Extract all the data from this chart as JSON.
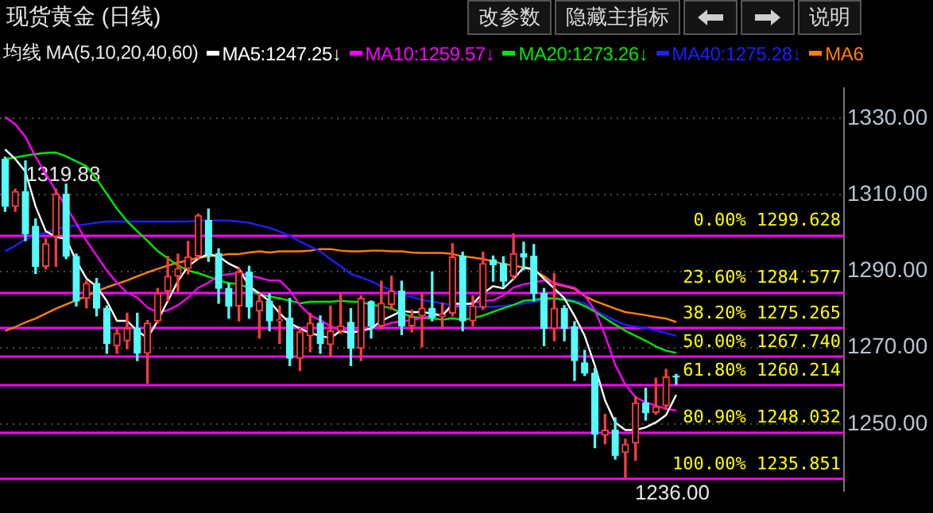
{
  "chart_data": {
    "type": "candlestick",
    "title": "现货黄金 (日线)",
    "legend_title": "均线 MA(5,10,20,40,60)",
    "legend": "top",
    "grid": "y",
    "marker": "none",
    "line_style": "solid",
    "tick_labels": "y",
    "categories": [
      null,
      null,
      null,
      null,
      null,
      null,
      null,
      null,
      null,
      null,
      null,
      null,
      null,
      null,
      null,
      null,
      null,
      null,
      null,
      null,
      null,
      null,
      null,
      null,
      null,
      null,
      null,
      null,
      null,
      null,
      null,
      null,
      null,
      null,
      null,
      null,
      null,
      null,
      null,
      null,
      null,
      null,
      null,
      null,
      null,
      null,
      null,
      null,
      null,
      null,
      null,
      null,
      null,
      null,
      null,
      null,
      null,
      null,
      null,
      null,
      null,
      null,
      null,
      null,
      null,
      null,
      null
    ],
    "ohlc": [
      [
        1319.3,
        1319.88,
        1305.7,
        1307.0
      ],
      [
        1307.0,
        1311.5,
        1305.7,
        1310.9
      ],
      [
        1310.9,
        1318.9,
        1298.0,
        1299.8
      ],
      [
        1301.8,
        1303.7,
        1289.4,
        1291.3
      ],
      [
        1291.3,
        1298.5,
        1290.6,
        1297.2
      ],
      [
        1299.1,
        1311.5,
        1291.3,
        1310.2
      ],
      [
        1310.2,
        1312.8,
        1293.3,
        1293.9
      ],
      [
        1293.9,
        1294.5,
        1280.9,
        1282.2
      ],
      [
        1282.9,
        1287.5,
        1280.4,
        1286.8
      ],
      [
        1286.8,
        1288.1,
        1278.3,
        1280.3
      ],
      [
        1280.3,
        1280.9,
        1268.5,
        1271.1
      ],
      [
        1270.5,
        1275.0,
        1268.5,
        1273.7
      ],
      [
        1271.8,
        1279.0,
        1269.7,
        1275.0
      ],
      [
        1275.0,
        1279.0,
        1266.6,
        1268.5
      ],
      [
        1268.5,
        1277.1,
        1260.7,
        1276.4
      ],
      [
        1277.0,
        1285.5,
        1276.4,
        1284.2
      ],
      [
        1284.8,
        1293.9,
        1282.2,
        1288.7
      ],
      [
        1288.7,
        1294.5,
        1284.8,
        1290.7
      ],
      [
        1290.7,
        1297.8,
        1289.3,
        1293.7
      ],
      [
        1294.0,
        1305.0,
        1293.3,
        1304.6
      ],
      [
        1303.3,
        1306.3,
        1292.6,
        1294.6
      ],
      [
        1294.6,
        1295.9,
        1281.6,
        1285.5
      ],
      [
        1285.5,
        1286.8,
        1277.7,
        1280.9
      ],
      [
        1280.9,
        1290.7,
        1277.0,
        1289.8
      ],
      [
        1289.8,
        1291.3,
        1277.7,
        1280.7
      ],
      [
        1279.6,
        1284.1,
        1272.5,
        1282.2
      ],
      [
        1282.2,
        1284.1,
        1274.4,
        1277.0
      ],
      [
        1277.0,
        1280.9,
        1271.1,
        1277.3
      ],
      [
        1277.7,
        1282.9,
        1265.3,
        1267.2
      ],
      [
        1267.2,
        1275.0,
        1264.0,
        1274.1
      ],
      [
        1273.1,
        1279.0,
        1268.9,
        1276.4
      ],
      [
        1276.4,
        1278.3,
        1268.5,
        1271.1
      ],
      [
        1270.8,
        1280.9,
        1267.6,
        1274.4
      ],
      [
        1274.4,
        1284.2,
        1273.7,
        1275.7
      ],
      [
        1276.6,
        1280.2,
        1265.3,
        1269.8
      ],
      [
        1269.8,
        1283.6,
        1266.6,
        1282.9
      ],
      [
        1282.0,
        1282.2,
        1272.5,
        1275.7
      ],
      [
        1275.7,
        1287.4,
        1275.0,
        1281.6
      ],
      [
        1281.3,
        1288.7,
        1280.0,
        1284.8
      ],
      [
        1284.8,
        1287.4,
        1273.4,
        1275.7
      ],
      [
        1275.7,
        1279.8,
        1274.1,
        1278.0
      ],
      [
        1278.3,
        1284.0,
        1270.2,
        1280.3
      ],
      [
        1280.3,
        1289.8,
        1277.0,
        1278.0
      ],
      [
        1278.2,
        1281.6,
        1275.0,
        1278.6
      ],
      [
        1279.0,
        1297.2,
        1278.3,
        1293.7
      ],
      [
        1294.0,
        1295.0,
        1274.4,
        1277.0
      ],
      [
        1277.0,
        1283.6,
        1275.7,
        1280.9
      ],
      [
        1280.6,
        1295.0,
        1280.0,
        1292.0
      ],
      [
        1293.0,
        1294.0,
        1287.4,
        1291.7
      ],
      [
        1292.0,
        1293.8,
        1286.0,
        1287.4
      ],
      [
        1288.7,
        1299.8,
        1288.0,
        1294.6
      ],
      [
        1294.6,
        1297.6,
        1290.4,
        1293.7
      ],
      [
        1294.0,
        1297.0,
        1282.2,
        1284.2
      ],
      [
        1284.2,
        1285.5,
        1270.5,
        1275.0
      ],
      [
        1275.0,
        1289.4,
        1271.8,
        1280.3
      ],
      [
        1280.3,
        1281.0,
        1271.8,
        1275.0
      ],
      [
        1275.5,
        1276.8,
        1261.4,
        1266.6
      ],
      [
        1266.0,
        1269.3,
        1262.7,
        1263.3
      ],
      [
        1263.3,
        1264.6,
        1243.8,
        1247.3
      ],
      [
        1247.1,
        1252.5,
        1244.8,
        1248.4
      ],
      [
        1248.4,
        1251.6,
        1240.8,
        1241.8
      ],
      [
        1242.5,
        1246.0,
        1236.0,
        1244.7
      ],
      [
        1245.0,
        1257.2,
        1240.5,
        1255.5
      ],
      [
        1255.5,
        1259.4,
        1251.0,
        1252.9
      ],
      [
        1253.0,
        1262.0,
        1252.5,
        1254.5
      ],
      [
        1254.8,
        1264.3,
        1253.8,
        1262.3
      ],
      [
        1262.6,
        1263.0,
        1260.4,
        1262.3
      ]
    ],
    "series": [
      {
        "type": "line",
        "name": "MA5:1247.25↓",
        "color": "#ffffff",
        "values": [
          1321.9,
          1319.4,
          1316.1,
          1307,
          1300.5,
          1299,
          1298.5,
          1292.7,
          1288.1,
          1286,
          1282.2,
          1277,
          1277,
          1274.4,
          1272.5,
          1277,
          1282.2,
          1287.4,
          1291.3,
          1293.3,
          1294.5,
          1293.9,
          1292,
          1290.7,
          1286.1,
          1284.2,
          1282.2,
          1279,
          1276.4,
          1275,
          1273.8,
          1273.1,
          1272.5,
          1274.4,
          1273.8,
          1274.4,
          1275,
          1277,
          1278.3,
          1279.6,
          1279.3,
          1279.3,
          1279,
          1278.3,
          1281.5,
          1281.5,
          1281.5,
          1284.2,
          1286.1,
          1285.5,
          1288,
          1291,
          1290.6,
          1288,
          1285.5,
          1282.9,
          1278.3,
          1273.1,
          1265.3,
          1256.2,
          1250.4,
          1248.4,
          1248.4,
          1249.1,
          1250.4,
          1252.3,
          1257.6
        ]
      },
      {
        "type": "line",
        "name": "MA10:1259.57↓",
        "color": "#ff00ff",
        "values": [
          1330.4,
          1328.5,
          1325.2,
          1320,
          1315.5,
          1311,
          1307,
          1302.5,
          1298,
          1294.1,
          1290.2,
          1287,
          1284.4,
          1283.1,
          1280.5,
          1279.2,
          1279.8,
          1281.1,
          1283.1,
          1285.7,
          1287,
          1288.9,
          1289.2,
          1289.6,
          1288.9,
          1288.3,
          1287.6,
          1287.6,
          1285,
          1281.1,
          1278.5,
          1277.2,
          1275.6,
          1274.8,
          1274.5,
          1274.5,
          1274.9,
          1275.6,
          1276.5,
          1276.9,
          1277.2,
          1277.8,
          1278.2,
          1278.8,
          1280.5,
          1281.1,
          1281.8,
          1282.2,
          1282.4,
          1283.7,
          1285.7,
          1286.6,
          1287,
          1287.6,
          1287,
          1286.3,
          1285.7,
          1283.7,
          1279.8,
          1273.3,
          1265.5,
          1260.3,
          1257,
          1255.7,
          1254.8,
          1254,
          1253.5
        ]
      },
      {
        "type": "line",
        "name": "MA20:1273.26↓",
        "color": "#00e600",
        "values": [
          1319.4,
          1319.8,
          1320.3,
          1320.7,
          1321,
          1321.1,
          1320.1,
          1318.8,
          1317.5,
          1314.2,
          1310.3,
          1306.4,
          1303.1,
          1300.5,
          1298,
          1295.3,
          1293.4,
          1291.5,
          1290.2,
          1289.5,
          1288.6,
          1287.6,
          1286.9,
          1286.6,
          1285.6,
          1283.9,
          1283.4,
          1282.9,
          1282.3,
          1281.6,
          1282,
          1282,
          1282,
          1282.3,
          1282,
          1282,
          1281.2,
          1280.9,
          1280.3,
          1279,
          1278.1,
          1277.7,
          1277.7,
          1277.3,
          1277.7,
          1277.3,
          1277.7,
          1278.4,
          1279.4,
          1280.3,
          1281.2,
          1282.3,
          1282.5,
          1282.9,
          1282.9,
          1282.5,
          1282,
          1280.9,
          1279.4,
          1277.7,
          1276,
          1274.4,
          1273.1,
          1271.8,
          1270.3,
          1269.2,
          1268.6
        ]
      },
      {
        "type": "line",
        "name": "MA40:1275.28↓",
        "color": "#1e1eff",
        "values": [
          1295.2,
          1296.7,
          1298.4,
          1299.3,
          1300.1,
          1301,
          1301.7,
          1302,
          1302.3,
          1302.7,
          1303,
          1303,
          1303,
          1303,
          1303,
          1303,
          1303,
          1303,
          1303,
          1303.3,
          1303.3,
          1303.3,
          1303.3,
          1303,
          1302.7,
          1302,
          1301.4,
          1300.4,
          1299.3,
          1297.8,
          1296.5,
          1295.2,
          1293.2,
          1291.3,
          1289.3,
          1288.4,
          1287.4,
          1286.1,
          1285.1,
          1283.8,
          1283.3,
          1282.5,
          1282,
          1281.6,
          1281.2,
          1280.9,
          1280.7,
          1280.7,
          1280.7,
          1280.9,
          1281.2,
          1281.6,
          1282,
          1282.5,
          1282.9,
          1282.9,
          1282.3,
          1281.6,
          1279.7,
          1278.4,
          1277.1,
          1276,
          1275.5,
          1275.1,
          1274.5,
          1273.8,
          1273.1
        ]
      },
      {
        "type": "line",
        "name": "MA6",
        "color": "#ff8000",
        "values": [
          1274.4,
          1275.4,
          1276.6,
          1277.6,
          1278.9,
          1280.2,
          1281.3,
          1282.4,
          1283.5,
          1284.8,
          1285.8,
          1286.7,
          1287.6,
          1288.7,
          1289.7,
          1290.6,
          1291.5,
          1292.3,
          1292.8,
          1293.6,
          1293.9,
          1294.1,
          1294.5,
          1294.5,
          1294.9,
          1295.2,
          1294.9,
          1295.2,
          1295.2,
          1295.2,
          1295.4,
          1295.8,
          1295.8,
          1295.4,
          1295.2,
          1295.2,
          1295.4,
          1295.4,
          1295.2,
          1295.2,
          1294.9,
          1294.8,
          1294.8,
          1294.8,
          1294.5,
          1293.9,
          1293.6,
          1293.2,
          1292.6,
          1291.9,
          1291.5,
          1291,
          1290.2,
          1288.7,
          1286.7,
          1286.1,
          1285.4,
          1283.5,
          1282.2,
          1281.2,
          1280.2,
          1279.3,
          1278.9,
          1278.5,
          1278,
          1277.6,
          1276.7
        ]
      }
    ],
    "ylim": [
      1232.5,
      1338
    ],
    "yticks": [
      {
        "value": 1250,
        "label": "1250.00"
      },
      {
        "value": 1270,
        "label": "1270.00"
      },
      {
        "value": 1290,
        "label": "1290.00"
      },
      {
        "value": 1310,
        "label": "1310.00"
      },
      {
        "value": 1330,
        "label": "1330.00"
      }
    ],
    "ref_lines": [
      {
        "axis": "y",
        "value": 1299.628,
        "label": "0.00% 1299.628",
        "color": "#ff00ff"
      },
      {
        "axis": "y",
        "value": 1284.577,
        "label": "23.60% 1284.577",
        "color": "#ff00ff"
      },
      {
        "axis": "y",
        "value": 1275.265,
        "label": "38.20% 1275.265",
        "color": "#ff00ff"
      },
      {
        "axis": "y",
        "value": 1267.74,
        "label": "50.00% 1267.740",
        "color": "#ff00ff"
      },
      {
        "axis": "y",
        "value": 1260.214,
        "label": "61.80% 1260.214",
        "color": "#ff00ff"
      },
      {
        "axis": "y",
        "value": 1248.032,
        "label": "80.90% 1248.032",
        "color": "#ff00ff"
      },
      {
        "axis": "y",
        "value": 1235.851,
        "label": "100.00% 1235.851",
        "color": "#ff00ff"
      }
    ],
    "annotations": [
      "改参数",
      "隐藏主指标",
      "说明",
      {
        "text": "1319.88",
        "y": 1319.88
      },
      {
        "text": "1236.00",
        "y": 1236
      }
    ]
  }
}
